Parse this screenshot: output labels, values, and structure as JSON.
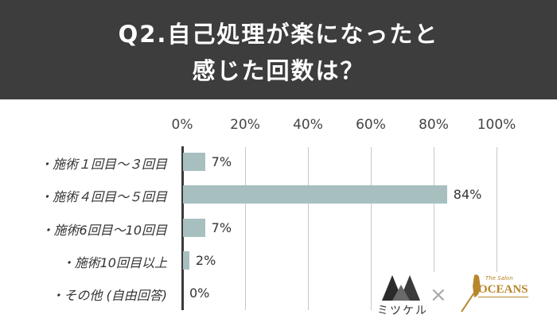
{
  "header": {
    "title_line1": "Q2.自己処理が楽になったと",
    "title_line2": "感じた回数は？",
    "background": "#3d3d3d"
  },
  "chart_data": {
    "type": "bar",
    "orientation": "horizontal",
    "title": "Q2.自己処理が楽になったと感じた回数は？",
    "categories": [
      "・施術１回目〜３回目",
      "・施術４回目〜５回目",
      "・施術6回目〜10回目",
      "・施術10回目以上",
      "・その他 (自由回答)"
    ],
    "values": [
      7,
      84,
      7,
      2,
      0
    ],
    "value_labels": [
      "7%",
      "84%",
      "7%",
      "2%",
      "0%"
    ],
    "xlabel": "",
    "ylabel": "",
    "xlim": [
      0,
      100
    ],
    "x_ticks": [
      "0%",
      "20%",
      "40%",
      "60%",
      "80%",
      "100%"
    ],
    "grid": true,
    "legend": null,
    "bar_color": "#a8bfc0"
  },
  "logos": {
    "left_name": "ミツケル",
    "separator": "×",
    "right_small": "The Salon",
    "right_name": "OCEANS",
    "right_color": "#b8862b"
  }
}
